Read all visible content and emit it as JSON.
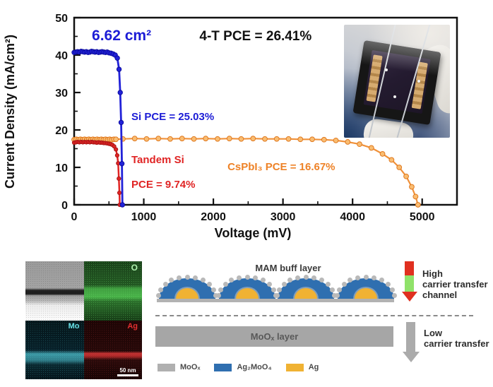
{
  "chart_data": {
    "type": "line",
    "title": "",
    "xlabel": "Voltage (mV)",
    "ylabel": "Current Density (mA/cm²)",
    "xlim": [
      0,
      5500
    ],
    "ylim": [
      0,
      50
    ],
    "xticks": [
      0,
      1000,
      2000,
      3000,
      4000,
      5000
    ],
    "yticks": [
      0,
      10,
      20,
      30,
      40,
      50
    ],
    "x_minor_step": 500,
    "y_minor_step": 5,
    "grid": false,
    "legend_position": "none",
    "annotations": [
      {
        "id": "cell-area",
        "text": "6.62 cm²",
        "x": 254,
        "y": 44.0,
        "color": "#1c1cd6",
        "size": 21
      },
      {
        "id": "four-terminal-pce",
        "text": "4-T PCE = 26.41%",
        "x": 1800,
        "y": 44.0,
        "color": "#111111",
        "size": 19
      },
      {
        "id": "si-pce",
        "text": "Si  PCE = 25.03%",
        "x": 822,
        "y": 22.6,
        "color": "#1c1cd6",
        "size": 15
      },
      {
        "id": "tandem-si-name",
        "text": "Tandem Si",
        "x": 822,
        "y": 11.1,
        "color": "#e02424",
        "size": 15
      },
      {
        "id": "tandem-si-pce",
        "text": "PCE = 9.74%",
        "x": 822,
        "y": 4.5,
        "color": "#e02424",
        "size": 15
      },
      {
        "id": "cspbi3-pce",
        "text": "CsPbI₃ PCE = 16.67%",
        "x": 2203,
        "y": 9.2,
        "color": "#ee8227",
        "size": 15
      }
    ],
    "series": [
      {
        "name": "CsPbI₃",
        "color": "#f0913a",
        "marker_fill": "#f9bd72",
        "marker_stroke": "#e0791f",
        "marker_r": 3.4,
        "line_width": 2.2,
        "points": [
          [
            0,
            17.4
          ],
          [
            30,
            17.5
          ],
          [
            60,
            17.4
          ],
          [
            90,
            17.5
          ],
          [
            120,
            17.4
          ],
          [
            150,
            17.5
          ],
          [
            180,
            17.4
          ],
          [
            210,
            17.5
          ],
          [
            240,
            17.4
          ],
          [
            270,
            17.5
          ],
          [
            300,
            17.4
          ],
          [
            330,
            17.5
          ],
          [
            360,
            17.4
          ],
          [
            390,
            17.5
          ],
          [
            420,
            17.4
          ],
          [
            450,
            17.5
          ],
          [
            480,
            17.4
          ],
          [
            510,
            17.5
          ],
          [
            540,
            17.4
          ],
          [
            570,
            17.5
          ],
          [
            600,
            17.5
          ],
          [
            700,
            17.6
          ],
          [
            870,
            17.7
          ],
          [
            1040,
            17.6
          ],
          [
            1210,
            17.7
          ],
          [
            1380,
            17.6
          ],
          [
            1550,
            17.7
          ],
          [
            1720,
            17.6
          ],
          [
            1890,
            17.7
          ],
          [
            2060,
            17.6
          ],
          [
            2230,
            17.7
          ],
          [
            2400,
            17.6
          ],
          [
            2570,
            17.7
          ],
          [
            2740,
            17.6
          ],
          [
            2910,
            17.6
          ],
          [
            3080,
            17.6
          ],
          [
            3250,
            17.5
          ],
          [
            3420,
            17.5
          ],
          [
            3590,
            17.4
          ],
          [
            3760,
            17.2
          ],
          [
            3930,
            16.8
          ],
          [
            4100,
            16.2
          ],
          [
            4270,
            15.2
          ],
          [
            4430,
            13.6
          ],
          [
            4560,
            12.0
          ],
          [
            4670,
            10.0
          ],
          [
            4770,
            7.6
          ],
          [
            4850,
            4.8
          ],
          [
            4905,
            2.2
          ],
          [
            4940,
            0
          ]
        ]
      },
      {
        "name": "Tandem Si",
        "color": "#e02424",
        "marker_fill": "#e02424",
        "marker_stroke": "#a81616",
        "marker_r": 2.6,
        "line_width": 2.5,
        "points": [
          [
            0,
            16.6
          ],
          [
            25,
            16.7
          ],
          [
            50,
            16.8
          ],
          [
            75,
            16.7
          ],
          [
            100,
            16.8
          ],
          [
            125,
            16.7
          ],
          [
            150,
            16.8
          ],
          [
            175,
            16.7
          ],
          [
            200,
            16.8
          ],
          [
            225,
            16.7
          ],
          [
            250,
            16.8
          ],
          [
            275,
            16.7
          ],
          [
            300,
            16.7
          ],
          [
            325,
            16.6
          ],
          [
            350,
            16.7
          ],
          [
            375,
            16.6
          ],
          [
            400,
            16.6
          ],
          [
            425,
            16.5
          ],
          [
            450,
            16.5
          ],
          [
            475,
            16.4
          ],
          [
            500,
            16.3
          ],
          [
            525,
            16.2
          ],
          [
            550,
            16.0
          ],
          [
            575,
            15.6
          ],
          [
            600,
            14.8
          ],
          [
            618,
            13.2
          ],
          [
            632,
            11.1
          ],
          [
            642,
            7.0
          ],
          [
            650,
            3.2
          ],
          [
            656,
            0
          ]
        ]
      },
      {
        "name": "Si",
        "color": "#2222d8",
        "marker_fill": "#2222d8",
        "marker_stroke": "#0d0da0",
        "marker_r": 3.2,
        "line_width": 2.8,
        "points": [
          [
            0,
            40.7
          ],
          [
            25,
            40.8
          ],
          [
            50,
            40.9
          ],
          [
            75,
            40.8
          ],
          [
            100,
            41.0
          ],
          [
            125,
            40.9
          ],
          [
            150,
            40.8
          ],
          [
            175,
            40.9
          ],
          [
            200,
            40.7
          ],
          [
            225,
            40.8
          ],
          [
            250,
            41.0
          ],
          [
            275,
            40.9
          ],
          [
            300,
            40.8
          ],
          [
            325,
            40.9
          ],
          [
            350,
            40.7
          ],
          [
            375,
            40.8
          ],
          [
            400,
            40.9
          ],
          [
            425,
            40.8
          ],
          [
            450,
            40.7
          ],
          [
            475,
            40.8
          ],
          [
            500,
            40.6
          ],
          [
            530,
            40.5
          ],
          [
            560,
            40.3
          ],
          [
            590,
            40.0
          ],
          [
            620,
            39.2
          ],
          [
            645,
            36.2
          ],
          [
            662,
            30.0
          ],
          [
            675,
            22.0
          ],
          [
            686,
            11.0
          ],
          [
            693,
            0
          ]
        ]
      }
    ]
  },
  "eds": {
    "o_label": "O",
    "mo_label": "Mo",
    "ag_label": "Ag",
    "scale_bar": "50 nm"
  },
  "schematic": {
    "mam_label": "MAM buff layer",
    "moox_label": "MoOₓ layer",
    "high_lines": [
      "High",
      "carrier transfer",
      "channel"
    ],
    "low_lines": [
      "Low",
      "carrier transfer"
    ],
    "high_arrow_colors": {
      "top": "#e03020",
      "middle": "#90e26a",
      "head": "#e03020"
    },
    "low_arrow_color": "#ababab",
    "legend": [
      {
        "label": "MoOₓ",
        "color": "#b0b0b0"
      },
      {
        "label": "Ag₂MoO₄",
        "color": "#2f6fb0"
      },
      {
        "label": "Ag",
        "color": "#f0b233"
      }
    ],
    "dome_count": 4
  }
}
